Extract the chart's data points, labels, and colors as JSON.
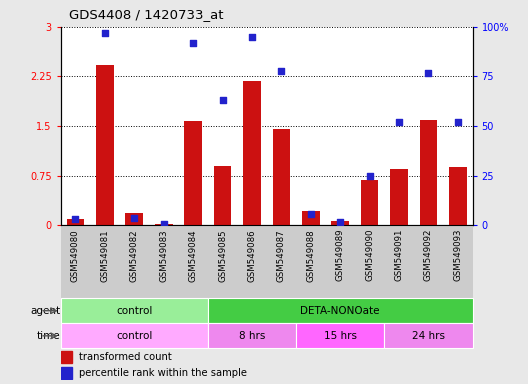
{
  "title": "GDS4408 / 1420733_at",
  "samples": [
    "GSM549080",
    "GSM549081",
    "GSM549082",
    "GSM549083",
    "GSM549084",
    "GSM549085",
    "GSM549086",
    "GSM549087",
    "GSM549088",
    "GSM549089",
    "GSM549090",
    "GSM549091",
    "GSM549092",
    "GSM549093"
  ],
  "bar_values": [
    0.09,
    2.42,
    0.18,
    0.02,
    1.58,
    0.9,
    2.18,
    1.45,
    0.22,
    0.06,
    0.68,
    0.85,
    1.6,
    0.88
  ],
  "dot_values": [
    3.0,
    97.0,
    3.5,
    0.8,
    92.0,
    63.0,
    95.0,
    78.0,
    5.5,
    1.5,
    25.0,
    52.0,
    77.0,
    52.0
  ],
  "bar_color": "#cc1111",
  "dot_color": "#2222cc",
  "ylim_left": [
    0,
    3.0
  ],
  "ylim_right": [
    0,
    100
  ],
  "yticks_left": [
    0,
    0.75,
    1.5,
    2.25,
    3.0
  ],
  "ytick_labels_left": [
    "0",
    "0.75",
    "1.5",
    "2.25",
    "3"
  ],
  "yticks_right": [
    0,
    25,
    50,
    75,
    100
  ],
  "ytick_labels_right": [
    "0",
    "25",
    "50",
    "75",
    "100%"
  ],
  "agent_groups": [
    {
      "label": "control",
      "start": 0,
      "end": 5,
      "color": "#99ee99"
    },
    {
      "label": "DETA-NONOate",
      "start": 5,
      "end": 14,
      "color": "#44cc44"
    }
  ],
  "time_groups": [
    {
      "label": "control",
      "start": 0,
      "end": 5,
      "color": "#ffaaff"
    },
    {
      "label": "8 hrs",
      "start": 5,
      "end": 8,
      "color": "#ee88ee"
    },
    {
      "label": "15 hrs",
      "start": 8,
      "end": 11,
      "color": "#ff66ff"
    },
    {
      "label": "24 hrs",
      "start": 11,
      "end": 14,
      "color": "#ee88ee"
    }
  ],
  "legend_bar_label": "transformed count",
  "legend_dot_label": "percentile rank within the sample",
  "bg_color": "#e8e8e8",
  "plot_bg": "#ffffff",
  "xtick_bg": "#cccccc"
}
